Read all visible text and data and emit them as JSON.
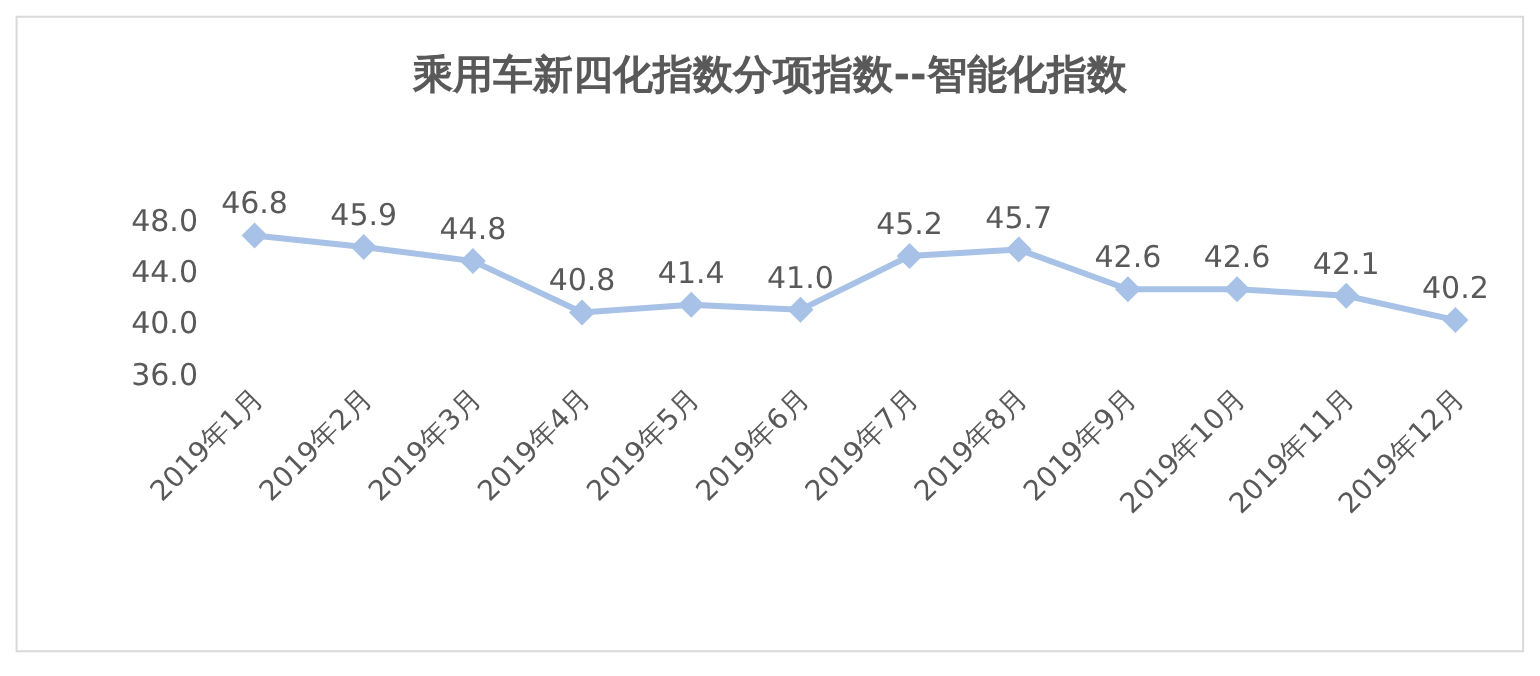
{
  "chart_data": {
    "type": "line",
    "title": "乘用车新四化指数分项指数--智能化指数",
    "categories": [
      "2019年1月",
      "2019年2月",
      "2019年3月",
      "2019年4月",
      "2019年5月",
      "2019年6月",
      "2019年7月",
      "2019年8月",
      "2019年9月",
      "2019年10月",
      "2019年11月",
      "2019年12月"
    ],
    "values": [
      46.8,
      45.9,
      44.8,
      40.8,
      41.4,
      41.0,
      45.2,
      45.7,
      42.6,
      42.6,
      42.1,
      40.2
    ],
    "value_labels": [
      "46.8",
      "45.9",
      "44.8",
      "40.8",
      "41.4",
      "41.0",
      "45.2",
      "45.7",
      "42.6",
      "42.6",
      "42.1",
      "40.2"
    ],
    "color": "#a7c2e6",
    "marker": "diamond",
    "line_style": "solid",
    "legend": false,
    "ylim": [
      36,
      48
    ],
    "yticks": [
      {
        "value": 36,
        "label": "36.0"
      },
      {
        "value": 40,
        "label": "40.0"
      },
      {
        "value": 44,
        "label": "44.0"
      },
      {
        "value": 48,
        "label": "48.0"
      }
    ]
  }
}
